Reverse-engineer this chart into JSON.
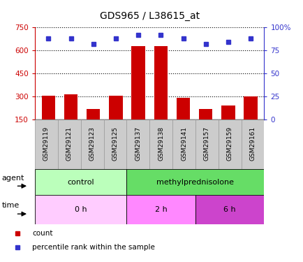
{
  "title": "GDS965 / L38615_at",
  "samples": [
    "GSM29119",
    "GSM29121",
    "GSM29123",
    "GSM29125",
    "GSM29137",
    "GSM29138",
    "GSM29141",
    "GSM29157",
    "GSM29159",
    "GSM29161"
  ],
  "counts": [
    305,
    315,
    215,
    305,
    630,
    630,
    290,
    215,
    240,
    300
  ],
  "percentiles": [
    88,
    88,
    82,
    88,
    92,
    92,
    88,
    82,
    84,
    88
  ],
  "ylim_left": [
    150,
    750
  ],
  "ylim_right": [
    0,
    100
  ],
  "yticks_left": [
    150,
    300,
    450,
    600,
    750
  ],
  "yticks_right": [
    0,
    25,
    50,
    75,
    100
  ],
  "ytick_labels_left": [
    "150",
    "300",
    "450",
    "600",
    "750"
  ],
  "ytick_labels_right": [
    "0",
    "25",
    "50",
    "75",
    "100%"
  ],
  "bar_color": "#cc0000",
  "dot_color": "#3333cc",
  "agent_groups": [
    {
      "label": "control",
      "start": 0,
      "end": 4,
      "color": "#bbffbb"
    },
    {
      "label": "methylprednisolone",
      "start": 4,
      "end": 10,
      "color": "#66dd66"
    }
  ],
  "time_groups": [
    {
      "label": "0 h",
      "start": 0,
      "end": 4,
      "color": "#ffccff"
    },
    {
      "label": "2 h",
      "start": 4,
      "end": 7,
      "color": "#ff88ff"
    },
    {
      "label": "6 h",
      "start": 7,
      "end": 10,
      "color": "#cc44cc"
    }
  ],
  "grid_color": "#000000",
  "background_color": "#ffffff",
  "cell_color": "#cccccc",
  "cell_border": "#999999",
  "legend_items": [
    {
      "label": "count",
      "color": "#cc0000"
    },
    {
      "label": "percentile rank within the sample",
      "color": "#3333cc"
    }
  ]
}
